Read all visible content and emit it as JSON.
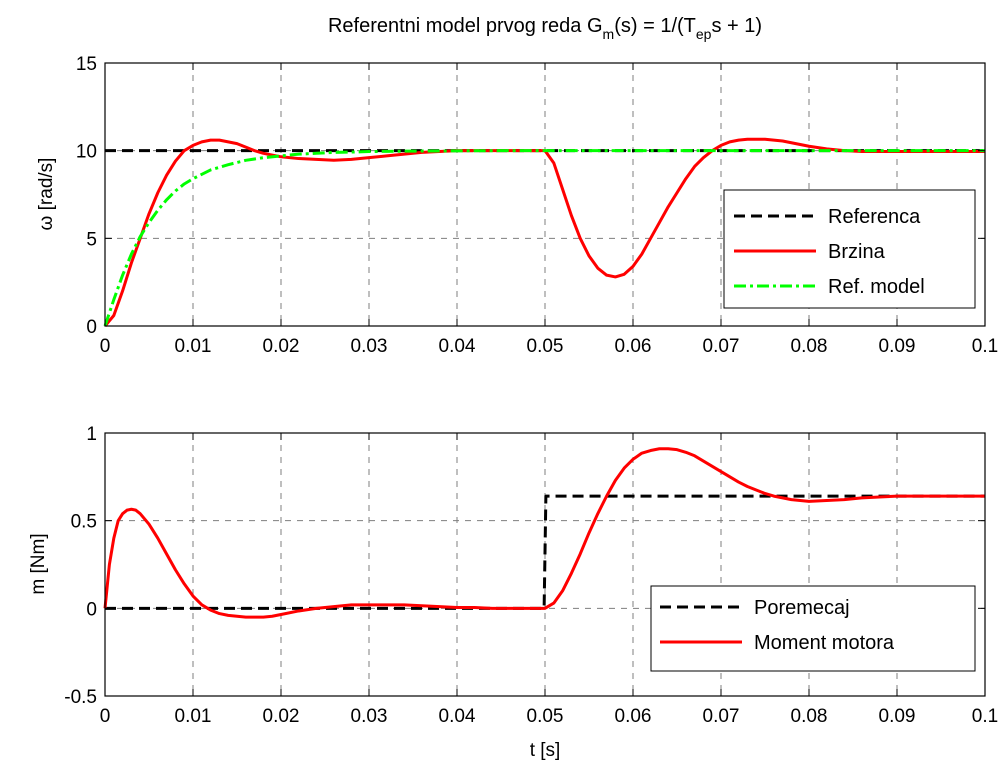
{
  "figure": {
    "title_prefix": "Referentni model prvog reda G",
    "title_sub_m": "m",
    "title_mid": "(s) = 1/(T",
    "title_sub_ep": "ep",
    "title_suffix": "s + 1)",
    "background": "#ffffff"
  },
  "colors": {
    "referenca": "#000000",
    "brzina": "#ff0000",
    "ref_model": "#00ff00",
    "poremecaj": "#000000",
    "moment": "#ff0000",
    "grid": "#7f7f7f"
  },
  "chart_data": [
    {
      "type": "line",
      "title": "Referentni model prvog reda G_m(s) = 1/(T_ep s + 1)",
      "xlabel": "",
      "ylabel": "ω [rad/s]",
      "ylabel_symbol": "ω",
      "ylabel_unit": "[rad/s]",
      "xlim": [
        0,
        0.1
      ],
      "ylim": [
        0,
        15
      ],
      "xticks": [
        0,
        0.01,
        0.02,
        0.03,
        0.04,
        0.05,
        0.06,
        0.07,
        0.08,
        0.09,
        0.1
      ],
      "xtick_labels": [
        "0",
        "0.01",
        "0.02",
        "0.03",
        "0.04",
        "0.05",
        "0.06",
        "0.07",
        "0.08",
        "0.09",
        "0.1"
      ],
      "yticks": [
        0,
        5,
        10,
        15
      ],
      "ytick_labels": [
        "0",
        "5",
        "10",
        "15"
      ],
      "grid": true,
      "legend_position": "right-center",
      "series": [
        {
          "name": "Referenca",
          "style": "dashed",
          "x": [
            0,
            0.1
          ],
          "y": [
            10,
            10
          ]
        },
        {
          "name": "Brzina",
          "style": "solid",
          "x": [
            0,
            0.001,
            0.002,
            0.003,
            0.004,
            0.005,
            0.006,
            0.007,
            0.008,
            0.009,
            0.01,
            0.011,
            0.012,
            0.013,
            0.014,
            0.015,
            0.016,
            0.017,
            0.018,
            0.019,
            0.02,
            0.022,
            0.024,
            0.026,
            0.028,
            0.03,
            0.032,
            0.034,
            0.036,
            0.038,
            0.04,
            0.042,
            0.044,
            0.046,
            0.048,
            0.05,
            0.051,
            0.052,
            0.053,
            0.054,
            0.055,
            0.056,
            0.057,
            0.058,
            0.059,
            0.06,
            0.061,
            0.062,
            0.063,
            0.064,
            0.065,
            0.066,
            0.067,
            0.068,
            0.069,
            0.07,
            0.071,
            0.072,
            0.073,
            0.074,
            0.075,
            0.076,
            0.077,
            0.078,
            0.079,
            0.08,
            0.082,
            0.084,
            0.086,
            0.088,
            0.09,
            0.092,
            0.094,
            0.096,
            0.098,
            0.1
          ],
          "y": [
            0,
            0.6,
            2.0,
            3.6,
            5.0,
            6.4,
            7.6,
            8.6,
            9.4,
            10.0,
            10.3,
            10.5,
            10.6,
            10.6,
            10.5,
            10.4,
            10.2,
            10.0,
            9.85,
            9.75,
            9.65,
            9.55,
            9.5,
            9.45,
            9.5,
            9.6,
            9.7,
            9.8,
            9.9,
            9.95,
            10.0,
            10.0,
            10.0,
            10.0,
            10.0,
            10.0,
            9.3,
            7.8,
            6.3,
            5.0,
            4.0,
            3.3,
            2.9,
            2.8,
            2.95,
            3.4,
            4.1,
            5.0,
            5.9,
            6.8,
            7.6,
            8.4,
            9.1,
            9.6,
            10.0,
            10.3,
            10.5,
            10.6,
            10.65,
            10.65,
            10.65,
            10.6,
            10.55,
            10.45,
            10.35,
            10.25,
            10.1,
            10.0,
            9.95,
            9.95,
            9.95,
            9.95,
            9.95,
            9.95,
            9.95,
            9.95
          ]
        },
        {
          "name": "Ref. model",
          "style": "dashdot",
          "x": [
            0,
            0.001,
            0.002,
            0.003,
            0.004,
            0.005,
            0.006,
            0.007,
            0.008,
            0.009,
            0.01,
            0.012,
            0.014,
            0.016,
            0.018,
            0.02,
            0.022,
            0.024,
            0.026,
            0.028,
            0.03,
            0.032,
            0.034,
            0.036,
            0.038,
            0.04,
            0.045,
            0.05,
            0.06,
            0.07,
            0.08,
            0.09,
            0.1
          ],
          "y": [
            0,
            1.5,
            2.9,
            4.1,
            5.1,
            5.9,
            6.6,
            7.2,
            7.7,
            8.1,
            8.4,
            8.9,
            9.2,
            9.45,
            9.6,
            9.7,
            9.8,
            9.85,
            9.9,
            9.92,
            9.95,
            9.96,
            9.97,
            9.98,
            9.98,
            9.99,
            10.0,
            10.0,
            10.0,
            10.0,
            10.0,
            10.0,
            10.0
          ]
        }
      ]
    },
    {
      "type": "line",
      "title": "",
      "xlabel": "t [s]",
      "ylabel": "m [Nm]",
      "xlim": [
        0,
        0.1
      ],
      "ylim": [
        -0.5,
        1
      ],
      "xticks": [
        0,
        0.01,
        0.02,
        0.03,
        0.04,
        0.05,
        0.06,
        0.07,
        0.08,
        0.09,
        0.1
      ],
      "xtick_labels": [
        "0",
        "0.01",
        "0.02",
        "0.03",
        "0.04",
        "0.05",
        "0.06",
        "0.07",
        "0.08",
        "0.09",
        "0.1"
      ],
      "yticks": [
        -0.5,
        0,
        0.5,
        1
      ],
      "ytick_labels": [
        "-0.5",
        "0",
        "0.5",
        "1"
      ],
      "grid": true,
      "legend_position": "bottom-right",
      "series": [
        {
          "name": "Poremecaj",
          "style": "dashed",
          "x": [
            0,
            0.0499,
            0.0501,
            0.1
          ],
          "y": [
            0,
            0,
            0.64,
            0.64
          ]
        },
        {
          "name": "Moment motora",
          "style": "solid",
          "x": [
            0,
            0.0005,
            0.001,
            0.0015,
            0.002,
            0.0025,
            0.003,
            0.0035,
            0.004,
            0.005,
            0.006,
            0.007,
            0.008,
            0.009,
            0.01,
            0.011,
            0.012,
            0.013,
            0.014,
            0.015,
            0.016,
            0.017,
            0.018,
            0.019,
            0.02,
            0.022,
            0.024,
            0.026,
            0.028,
            0.03,
            0.032,
            0.034,
            0.036,
            0.038,
            0.04,
            0.042,
            0.044,
            0.046,
            0.048,
            0.05,
            0.051,
            0.052,
            0.053,
            0.054,
            0.055,
            0.056,
            0.057,
            0.058,
            0.059,
            0.06,
            0.061,
            0.062,
            0.063,
            0.064,
            0.065,
            0.066,
            0.067,
            0.068,
            0.069,
            0.07,
            0.071,
            0.072,
            0.073,
            0.074,
            0.075,
            0.076,
            0.077,
            0.078,
            0.079,
            0.08,
            0.082,
            0.084,
            0.086,
            0.088,
            0.09,
            0.092,
            0.094,
            0.096,
            0.098,
            0.1
          ],
          "y": [
            0,
            0.25,
            0.4,
            0.5,
            0.54,
            0.56,
            0.565,
            0.56,
            0.54,
            0.48,
            0.4,
            0.31,
            0.22,
            0.14,
            0.07,
            0.02,
            -0.01,
            -0.03,
            -0.04,
            -0.045,
            -0.05,
            -0.05,
            -0.05,
            -0.045,
            -0.035,
            -0.015,
            0.0,
            0.01,
            0.02,
            0.02,
            0.02,
            0.02,
            0.015,
            0.01,
            0.005,
            0.005,
            0.0,
            0.0,
            0.0,
            0.0,
            0.03,
            0.1,
            0.2,
            0.31,
            0.43,
            0.54,
            0.64,
            0.73,
            0.8,
            0.85,
            0.885,
            0.9,
            0.91,
            0.91,
            0.905,
            0.89,
            0.87,
            0.84,
            0.81,
            0.78,
            0.75,
            0.72,
            0.695,
            0.675,
            0.655,
            0.64,
            0.63,
            0.62,
            0.615,
            0.61,
            0.615,
            0.62,
            0.63,
            0.635,
            0.64,
            0.64,
            0.64,
            0.64,
            0.64,
            0.64
          ]
        }
      ]
    }
  ]
}
